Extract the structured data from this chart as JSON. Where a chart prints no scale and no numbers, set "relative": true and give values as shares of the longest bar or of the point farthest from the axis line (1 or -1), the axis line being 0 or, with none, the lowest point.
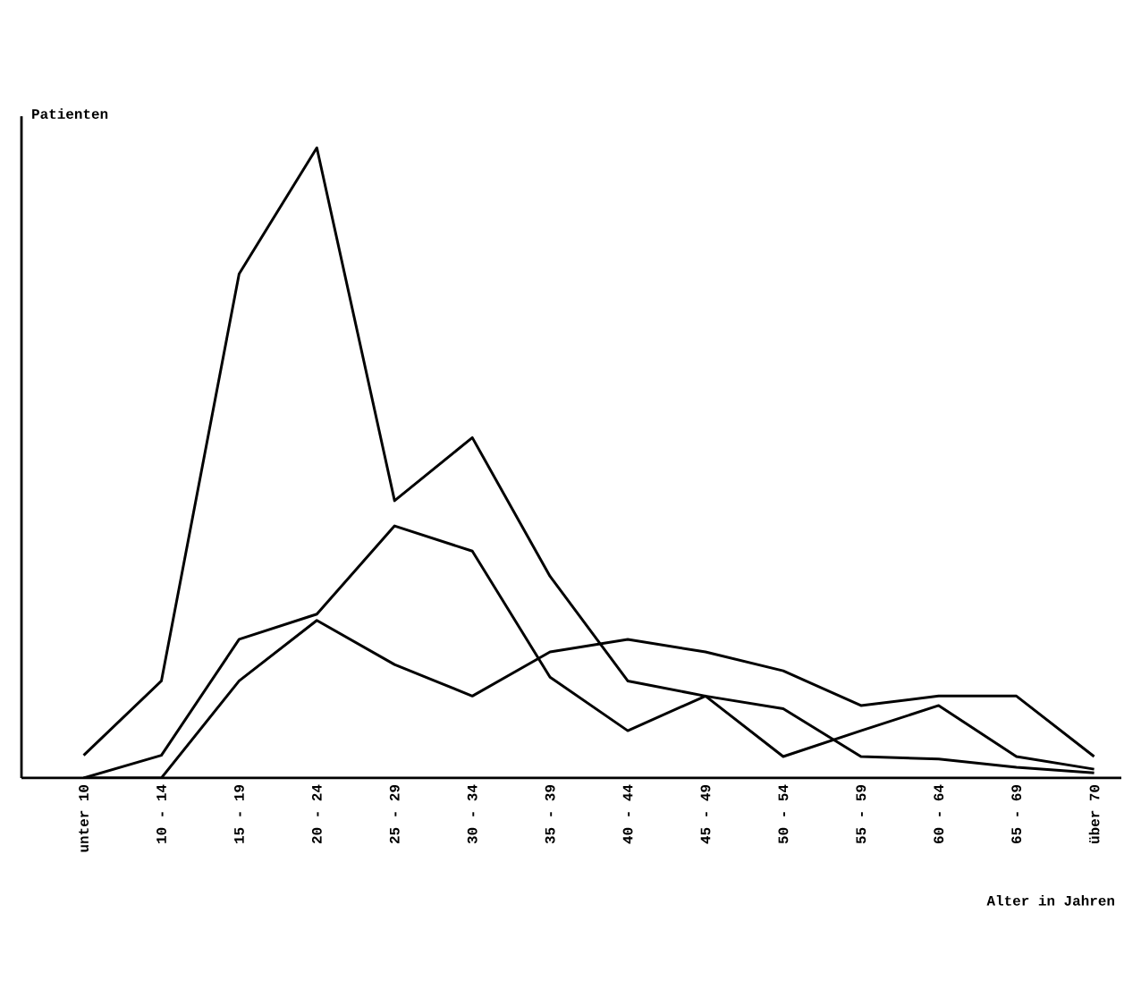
{
  "chart_data": {
    "type": "line",
    "relative": true,
    "ylabel": "Patienten",
    "xlabel": "Alter in Jahren",
    "categories": [
      "unter 10",
      "10 - 14",
      "15 - 19",
      "20 - 24",
      "25 - 29",
      "30 - 34",
      "35 - 39",
      "40 - 44",
      "45 - 49",
      "50 - 54",
      "55 - 59",
      "60 - 64",
      "65 - 69",
      "über 70"
    ],
    "series": [
      {
        "color": "#000000",
        "values": [
          0.036,
          0.154,
          0.8,
          1,
          0.44,
          0.54,
          0.32,
          0.154,
          0.13,
          0.11,
          0.034,
          0.03,
          0.017,
          0.008
        ]
      },
      {
        "color": "#000000",
        "values": [
          0,
          0.036,
          0.22,
          0.26,
          0.4,
          0.36,
          0.16,
          0.075,
          0.13,
          0.034,
          0.075,
          0.115,
          0.034,
          0.014
        ]
      },
      {
        "color": "#000000",
        "values": [
          0,
          0,
          0.154,
          0.25,
          0.18,
          0.13,
          0.2,
          0.22,
          0.2,
          0.17,
          0.115,
          0.13,
          0.13,
          0.034
        ]
      }
    ]
  }
}
